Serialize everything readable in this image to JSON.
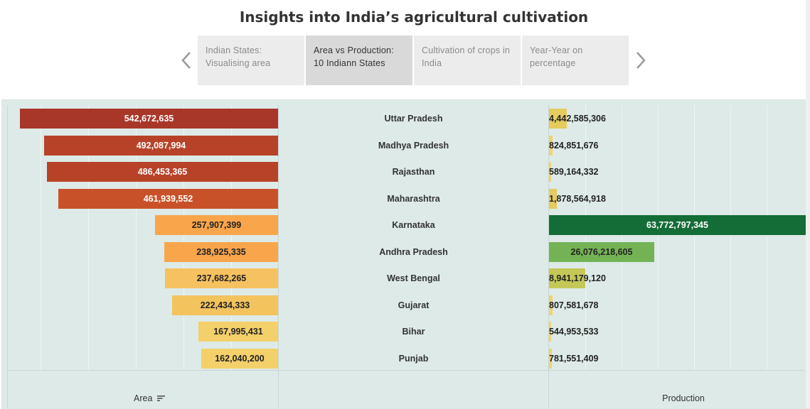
{
  "title": "Insights into India’s agricultural cultivation",
  "story_points": [
    {
      "label": "Indian States: Visualising area",
      "active": false
    },
    {
      "label": "Area vs Production: 10 Indiann States",
      "active": true
    },
    {
      "label": "Cultivation of crops in India",
      "active": false
    },
    {
      "label": "Year-Year on percentage",
      "active": false
    }
  ],
  "axis_labels": {
    "area": "Area",
    "production": "Production"
  },
  "chart_data": {
    "type": "bar",
    "categories": [
      "Uttar Pradesh",
      "Madhya Pradesh",
      "Rajasthan",
      "Maharashtra",
      "Karnataka",
      "Andhra Pradesh",
      "West Bengal",
      "Gujarat",
      "Bihar",
      "Punjab"
    ],
    "series": [
      {
        "name": "Area",
        "values": [
          542672635,
          492087994,
          486453365,
          461939552,
          257907399,
          238925335,
          237682265,
          222434333,
          167995431,
          162040200
        ],
        "labels": [
          "542,672,635",
          "492,087,994",
          "486,453,365",
          "461,939,552",
          "257,907,399",
          "238,925,335",
          "237,682,265",
          "222,434,333",
          "167,995,431",
          "162,040,200"
        ]
      },
      {
        "name": "Production",
        "values": [
          4442585306,
          824851676,
          589164332,
          1878564918,
          63772797345,
          26076218605,
          8941179120,
          807581678,
          544953533,
          781551409
        ],
        "labels": [
          "4,442,585,306",
          "824,851,676",
          "589,164,332",
          "1,878,564,918",
          "63,772,797,345",
          "26,076,218,605",
          "8,941,179,120",
          "807,581,678",
          "544,953,533",
          "781,551,409"
        ]
      }
    ],
    "area_colors": [
      "#a8372a",
      "#b84228",
      "#b84228",
      "#c9512a",
      "#f8a54b",
      "#f8a54b",
      "#f6c160",
      "#f3c35d",
      "#f4d06a",
      "#f4d06a"
    ],
    "production_colors": [
      "#e6cb5e",
      "#f1d470",
      "#f1d470",
      "#e6cb5e",
      "#146c36",
      "#74b355",
      "#c5c856",
      "#f1d470",
      "#f1d470",
      "#f1d470"
    ]
  }
}
